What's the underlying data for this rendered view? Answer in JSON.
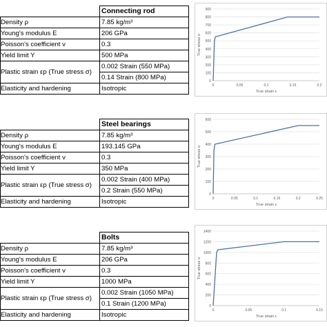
{
  "panels": [
    {
      "title": "Connecting rod",
      "rows": [
        {
          "label": "Density ρ",
          "value": "7.85 kg/m³"
        },
        {
          "label": "Young's modulus E",
          "value": "206 GPa"
        },
        {
          "label": "Poisson's coefficient ν",
          "value": "0.3"
        },
        {
          "label": "Yield limit Y",
          "value": "500 MPa"
        },
        {
          "label": "Plastic strain εp (True stress σ)",
          "values": [
            "0.002 Strain (550 MPa)",
            "0.14 Strain (800 MPa)"
          ]
        },
        {
          "label": "Elasticity and hardening",
          "value": "Isotropic"
        }
      ],
      "chart_data": {
        "type": "line",
        "xlabel": "True strain ε",
        "ylabel": "True stress σ",
        "xlim": [
          0,
          0.2
        ],
        "ylim": [
          0,
          900
        ],
        "xticks": [
          "0",
          "0.05",
          "0.1",
          "0.15",
          "0.2"
        ],
        "yticks": [
          "0",
          "100",
          "200",
          "300",
          "400",
          "500",
          "600",
          "700",
          "800",
          "900"
        ],
        "series": [
          {
            "x": [
              0,
              0.0024,
              0.004,
              0.14,
              0.2
            ],
            "y": [
              0,
              500,
              550,
              800,
              800
            ],
            "color": "#4a6fa5"
          }
        ]
      }
    },
    {
      "title": "Steel bearings",
      "rows": [
        {
          "label": "Density ρ",
          "value": "7.85 kg/m³"
        },
        {
          "label": "Young's modulus E",
          "value": "193.145 GPa"
        },
        {
          "label": "Poisson's coefficient ν",
          "value": "0.3"
        },
        {
          "label": "Yield limit Y",
          "value": "350 MPa"
        },
        {
          "label": "Plastic strain εp (True stress σ)",
          "values": [
            "0.002 Strain (400 MPa)",
            "0.2 Strain (550 MPa)"
          ]
        },
        {
          "label": "Elasticity and hardening",
          "value": "Isotropic"
        }
      ],
      "chart_data": {
        "type": "line",
        "xlabel": "True strain ε",
        "ylabel": "True stress σ",
        "xlim": [
          0,
          0.25
        ],
        "ylim": [
          0,
          600
        ],
        "xticks": [
          "0",
          "0.05",
          "0.1",
          "0.15",
          "0.2",
          "0.25"
        ],
        "yticks": [
          "0",
          "100",
          "200",
          "300",
          "400",
          "500",
          "600"
        ],
        "series": [
          {
            "x": [
              0,
              0.0018,
              0.004,
              0.2,
              0.25
            ],
            "y": [
              0,
              350,
              400,
              550,
              550
            ],
            "color": "#4a6fa5"
          }
        ]
      }
    },
    {
      "title": "Bolts",
      "rows": [
        {
          "label": "Density ρ",
          "value": "7.85 kg/m³"
        },
        {
          "label": "Young's modulus E",
          "value": "206 GPa"
        },
        {
          "label": "Poisson's coefficient ν",
          "value": "0.3"
        },
        {
          "label": "Yield limit Y",
          "value": "1000 MPa"
        },
        {
          "label": "Plastic strain εp (True stress σ)",
          "values": [
            "0.002 Strain (1050 MPa)",
            "0.1 Strain (1200 MPa)"
          ]
        },
        {
          "label": "Elasticity and hardening",
          "value": "Isotropic"
        }
      ],
      "chart_data": {
        "type": "line",
        "xlabel": "True strain ε",
        "ylabel": "True stress σ",
        "xlim": [
          0,
          0.15
        ],
        "ylim": [
          0,
          1400
        ],
        "xticks": [
          "0",
          "0.05",
          "0.1",
          "0.15"
        ],
        "yticks": [
          "0",
          "200",
          "400",
          "600",
          "800",
          "1000",
          "1200",
          "1400"
        ],
        "series": [
          {
            "x": [
              0,
              0.0049,
              0.0069,
              0.1,
              0.15
            ],
            "y": [
              0,
              1000,
              1050,
              1200,
              1200
            ],
            "color": "#4a6fa5"
          }
        ]
      }
    }
  ]
}
